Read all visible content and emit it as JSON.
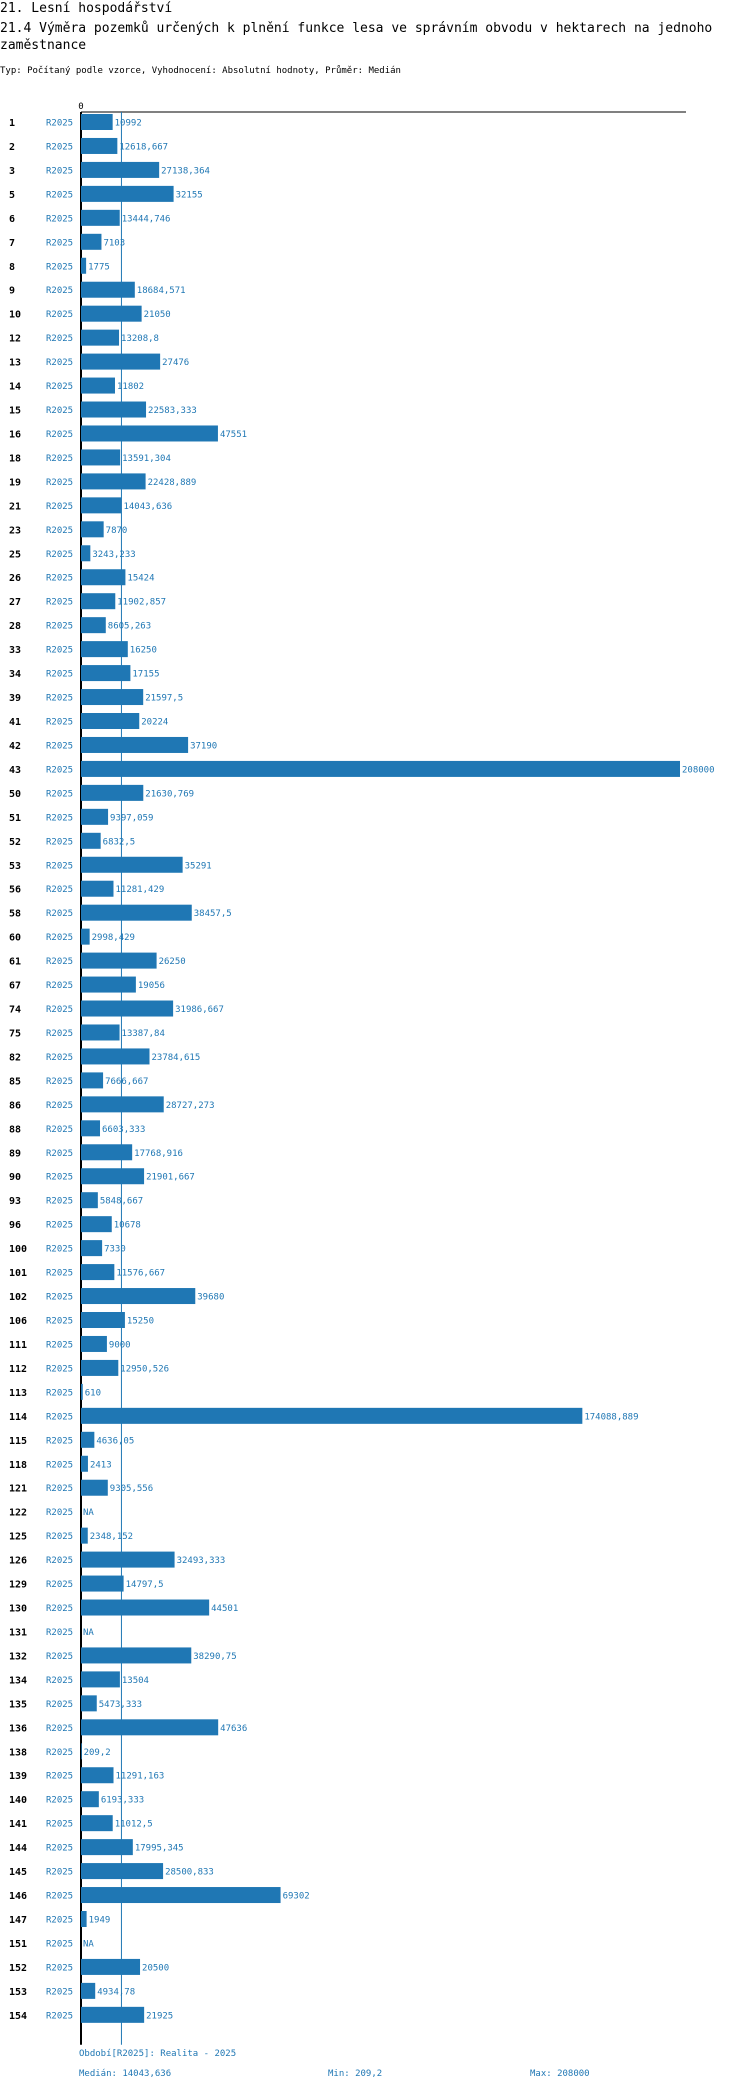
{
  "header": {
    "title": "21. Lesní hospodářství",
    "subtitle": "21.4 Výměra pozemků určených k plnění funkce lesa ve správním obvodu v hektarech na jednoho zaměstnance",
    "meta": "Typ: Počítaný podle vzorce, Vyhodnocení: Absolutní hodnoty, Průměr: Medián"
  },
  "colors": {
    "bar": "#1f77b4",
    "text_value": "#1f77b4",
    "label": "#000000",
    "period": "#1f77b4"
  },
  "chart_data": {
    "type": "bar",
    "orientation": "horizontal",
    "title": "21.4 Výměra pozemků určených k plnění funkce lesa ve správním obvodu v hektarech na jednoho zaměstnance",
    "xlim": [
      0,
      208000
    ],
    "x_tick_labels": [
      "0"
    ],
    "median": 14043.636,
    "series_label": "R2025",
    "categories": [
      "1",
      "2",
      "3",
      "5",
      "6",
      "7",
      "8",
      "9",
      "10",
      "12",
      "13",
      "14",
      "15",
      "16",
      "18",
      "19",
      "21",
      "23",
      "25",
      "26",
      "27",
      "28",
      "33",
      "34",
      "39",
      "41",
      "42",
      "43",
      "50",
      "51",
      "52",
      "53",
      "56",
      "58",
      "60",
      "61",
      "67",
      "74",
      "75",
      "82",
      "85",
      "86",
      "88",
      "89",
      "90",
      "93",
      "96",
      "100",
      "101",
      "102",
      "106",
      "111",
      "112",
      "113",
      "114",
      "115",
      "118",
      "121",
      "122",
      "125",
      "126",
      "129",
      "130",
      "131",
      "132",
      "134",
      "135",
      "136",
      "138",
      "139",
      "140",
      "141",
      "144",
      "145",
      "146",
      "147",
      "151",
      "152",
      "153",
      "154"
    ],
    "values": [
      10992,
      12618.667,
      27138.364,
      32155,
      13444.746,
      7103,
      1775,
      18684.571,
      21050,
      13208.8,
      27476,
      11802,
      22583.333,
      47551,
      13591.304,
      22428.889,
      14043.636,
      7870,
      3243.233,
      15424,
      11902.857,
      8605.263,
      16250,
      17155,
      21597.5,
      20224,
      37190,
      208000,
      21630.769,
      9397.059,
      6832.5,
      35291,
      11281.429,
      38457.5,
      2998.429,
      26250,
      19056,
      31986.667,
      13387.84,
      23784.615,
      7666.667,
      28727.273,
      6603.333,
      17768.916,
      21901.667,
      5848.667,
      10678,
      7330,
      11576.667,
      39680,
      15250,
      9000,
      12950.526,
      610,
      174088.889,
      4636.05,
      2413,
      9305.556,
      null,
      2348.152,
      32493.333,
      14797.5,
      44501,
      null,
      38290.75,
      13504,
      5473.333,
      47636,
      209.2,
      11291.163,
      6193.333,
      11012.5,
      17995.345,
      28500.833,
      69302,
      1949,
      null,
      20500,
      4934.78,
      21925
    ],
    "value_labels": [
      "10992",
      "12618,667",
      "27138,364",
      "32155",
      "13444,746",
      "7103",
      "1775",
      "18684,571",
      "21050",
      "13208,8",
      "27476",
      "11802",
      "22583,333",
      "47551",
      "13591,304",
      "22428,889",
      "14043,636",
      "7870",
      "3243,233",
      "15424",
      "11902,857",
      "8605,263",
      "16250",
      "17155",
      "21597,5",
      "20224",
      "37190",
      "208000",
      "21630,769",
      "9397,059",
      "6832,5",
      "35291",
      "11281,429",
      "38457,5",
      "2998,429",
      "26250",
      "19056",
      "31986,667",
      "13387,84",
      "23784,615",
      "7666,667",
      "28727,273",
      "6603,333",
      "17768,916",
      "21901,667",
      "5848,667",
      "10678",
      "7330",
      "11576,667",
      "39680",
      "15250",
      "9000",
      "12950,526",
      "610",
      "174088,889",
      "4636,05",
      "2413",
      "9305,556",
      "NA",
      "2348,152",
      "32493,333",
      "14797,5",
      "44501",
      "NA",
      "38290,75",
      "13504",
      "5473,333",
      "47636",
      "209,2",
      "11291,163",
      "6193,333",
      "11012,5",
      "17995,345",
      "28500,833",
      "69302",
      "1949",
      "NA",
      "20500",
      "4934,78",
      "21925"
    ]
  },
  "footer": {
    "period": "Období[R2025]: Realita - 2025",
    "median": "Medián: 14043,636",
    "min": "Min: 209,2",
    "max": "Max: 208000"
  }
}
